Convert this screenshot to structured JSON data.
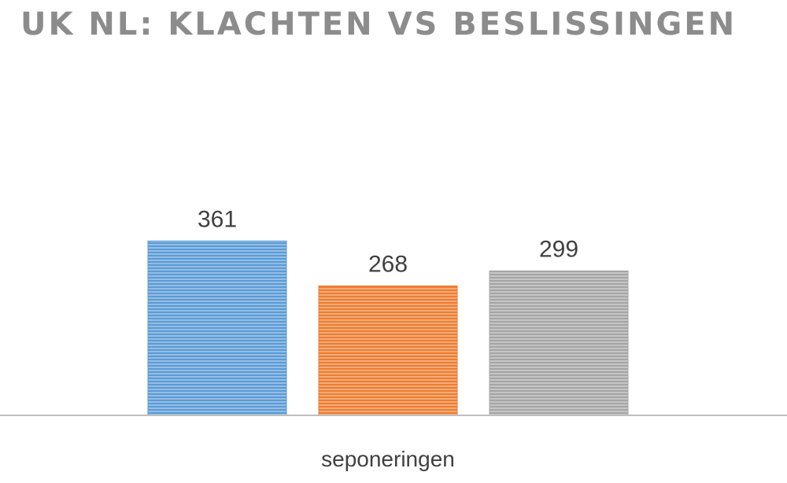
{
  "chart_data": {
    "type": "bar",
    "title": "UK NL: KLACHTEN VS BESLISSINGEN",
    "xlabel": "",
    "ylabel": "",
    "categories": [
      "seponeringen"
    ],
    "series": [
      {
        "values": [
          361
        ],
        "color": "#5b9bd5"
      },
      {
        "values": [
          268
        ],
        "color": "#ed7d31"
      },
      {
        "values": [
          299
        ],
        "color": "#a5a5a5"
      }
    ],
    "ylim": [
      0,
      600
    ],
    "grid": false,
    "legend": "none",
    "data_labels": true,
    "fill_pattern": "horizontal-stripes"
  }
}
